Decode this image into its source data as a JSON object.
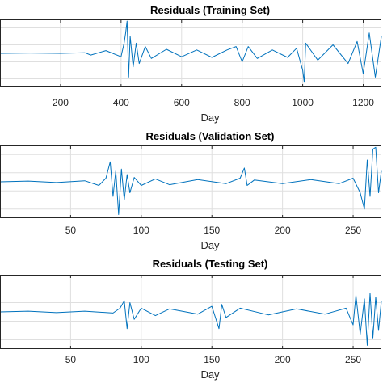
{
  "chart_data": [
    {
      "type": "line",
      "title": "Residuals (Training Set)",
      "xlabel": "Day",
      "ylabel": "",
      "xlim": [
        0,
        1260
      ],
      "ylim": [
        -1,
        1
      ],
      "xticks": [
        200,
        400,
        600,
        800,
        1000,
        1200
      ],
      "xtick_labels": [
        "200",
        "400",
        "600",
        "800",
        "1000",
        "1200"
      ],
      "grid": true,
      "color": "#0072BD",
      "series": [
        {
          "x": [
            0,
            100,
            200,
            280,
            300,
            350,
            400,
            410,
            415,
            420,
            425,
            430,
            440,
            450,
            460,
            480,
            500,
            550,
            600,
            650,
            700,
            750,
            780,
            800,
            820,
            850,
            900,
            950,
            980,
            1000,
            1005,
            1010,
            1050,
            1100,
            1150,
            1180,
            1200,
            1220,
            1240,
            1260
          ],
          "values": [
            0.0,
            0.01,
            0.0,
            0.02,
            -0.05,
            0.08,
            -0.1,
            0.3,
            0.6,
            0.95,
            -0.7,
            0.5,
            -0.4,
            0.3,
            -0.3,
            0.2,
            -0.15,
            0.12,
            -0.1,
            0.1,
            -0.12,
            0.1,
            0.2,
            -0.25,
            0.2,
            -0.15,
            0.1,
            -0.12,
            0.15,
            -0.5,
            -0.85,
            0.3,
            -0.2,
            0.25,
            -0.3,
            0.35,
            -0.6,
            0.6,
            -0.7,
            0.5
          ]
        }
      ]
    },
    {
      "type": "line",
      "title": "Residuals (Validation Set)",
      "xlabel": "Day",
      "ylabel": "",
      "xlim": [
        0,
        270
      ],
      "ylim": [
        -1,
        1
      ],
      "xticks": [
        50,
        100,
        150,
        200,
        250
      ],
      "xtick_labels": [
        "50",
        "100",
        "150",
        "200",
        "250"
      ],
      "grid": true,
      "color": "#0072BD",
      "series": [
        {
          "x": [
            0,
            20,
            40,
            60,
            70,
            75,
            78,
            80,
            82,
            84,
            86,
            88,
            90,
            92,
            95,
            100,
            110,
            120,
            140,
            160,
            170,
            173,
            175,
            180,
            200,
            220,
            240,
            250,
            255,
            258,
            260,
            262,
            264,
            266,
            268,
            270
          ],
          "values": [
            0.0,
            0.02,
            -0.02,
            0.03,
            -0.1,
            0.1,
            0.55,
            -0.4,
            0.3,
            -0.9,
            0.35,
            -0.5,
            0.2,
            -0.3,
            0.12,
            -0.1,
            0.08,
            -0.08,
            0.06,
            -0.05,
            0.1,
            0.38,
            -0.1,
            0.05,
            -0.05,
            0.06,
            -0.05,
            0.1,
            -0.3,
            -0.75,
            0.6,
            -0.4,
            0.9,
            0.95,
            -0.3,
            0.3
          ]
        }
      ]
    },
    {
      "type": "line",
      "title": "Residuals (Testing Set)",
      "xlabel": "Day",
      "ylabel": "",
      "xlim": [
        0,
        270
      ],
      "ylim": [
        -1,
        1
      ],
      "xticks": [
        50,
        100,
        150,
        200,
        250
      ],
      "xtick_labels": [
        "50",
        "100",
        "150",
        "200",
        "250"
      ],
      "grid": true,
      "color": "#0072BD",
      "series": [
        {
          "x": [
            0,
            20,
            40,
            60,
            80,
            85,
            88,
            90,
            92,
            95,
            100,
            110,
            120,
            140,
            150,
            155,
            157,
            160,
            170,
            190,
            210,
            230,
            245,
            250,
            252,
            255,
            258,
            260,
            262,
            264,
            266,
            268,
            270
          ],
          "values": [
            0.0,
            0.02,
            -0.02,
            0.02,
            -0.03,
            0.1,
            0.3,
            -0.45,
            0.25,
            -0.2,
            0.1,
            -0.1,
            0.08,
            -0.06,
            0.15,
            -0.45,
            0.2,
            -0.15,
            0.1,
            -0.08,
            0.08,
            -0.06,
            0.1,
            -0.35,
            0.45,
            -0.6,
            0.35,
            -0.9,
            0.5,
            -0.7,
            0.4,
            -0.5,
            0.3
          ]
        }
      ]
    }
  ]
}
